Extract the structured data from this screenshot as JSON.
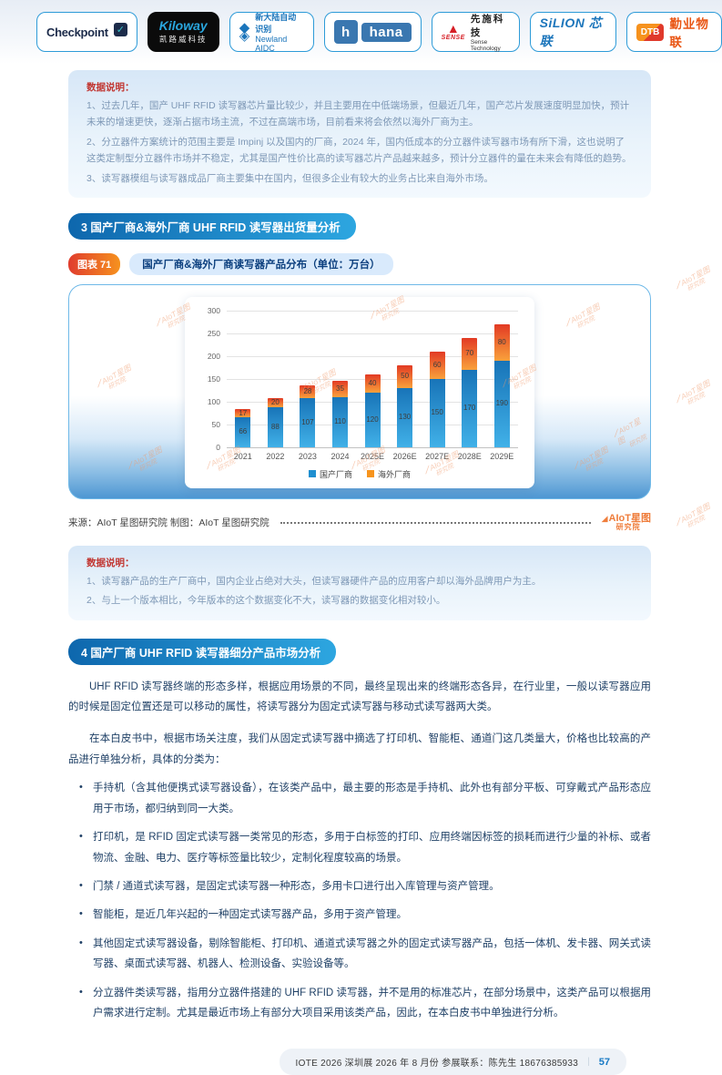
{
  "logos": [
    {
      "text": "Checkpoint"
    },
    {
      "line1": "Kiloway",
      "line2": "凯路威科技"
    },
    {
      "line1": "新大陆自动识别",
      "line2": "Newland AIDC"
    },
    {
      "text": "hana",
      "icon": "h"
    },
    {
      "brand": "SENSE",
      "cn": "先施科技",
      "en": "Sense Technology"
    },
    {
      "text": "SiLION 芯联"
    },
    {
      "badge": "DTB",
      "text": "勤业物联"
    }
  ],
  "note_box_1": {
    "title": "数据说明：",
    "items": [
      "1、过去几年，国产 UHF RFID 读写器芯片量比较少，并且主要用在中低端场景，但最近几年，国产芯片发展速度明显加快，预计未来的增速更快，逐渐占据市场主流，不过在高端市场，目前看来将会依然以海外厂商为主。",
      "2、分立器件方案统计的范围主要是 Impinj 以及国内的厂商，2024 年，国内低成本的分立器件读写器市场有所下滑，这也说明了这类定制型分立器件市场并不稳定，尤其是国产性价比高的读写器芯片产品越来越多，预计分立器件的量在未来会有降低的趋势。",
      "3、读写器模组与读写器成品厂商主要集中在国内，但很多企业有较大的业务占比来自海外市场。"
    ]
  },
  "section_3": {
    "label": "3  国产厂商&海外厂商 UHF RFID 读写器出货量分析"
  },
  "figure": {
    "badge": "图表 71",
    "caption": "国产厂商&海外厂商读写器产品分布（单位：万台）"
  },
  "chart_data": {
    "type": "bar",
    "stacked": true,
    "categories": [
      "2021",
      "2022",
      "2023",
      "2024",
      "2025E",
      "2026E",
      "2027E",
      "2028E",
      "2029E"
    ],
    "series": [
      {
        "name": "国产厂商",
        "color": "#1f8fd0",
        "values": [
          66,
          88,
          107,
          110,
          120,
          130,
          150,
          170,
          190
        ]
      },
      {
        "name": "海外厂商",
        "color": "#f7941d",
        "values": [
          17,
          20,
          28,
          35,
          40,
          50,
          60,
          70,
          80
        ]
      }
    ],
    "title": "国产厂商&海外厂商读写器产品分布（单位：万台）",
    "xlabel": "",
    "ylabel": "",
    "ylim": [
      0,
      300
    ],
    "ytick_step": 50,
    "grid": true,
    "legend_position": "bottom"
  },
  "watermark": {
    "line1": "AIoT星图",
    "line2": "研究院"
  },
  "source_row": {
    "text": "来源：AIoT 星图研究院   制图：AIoT 星图研究院",
    "logo_line1": "AIoT星图",
    "logo_line2": "研究院"
  },
  "note_box_2": {
    "title": "数据说明：",
    "items": [
      "1、读写器产品的生产厂商中，国内企业占绝对大头，但读写器硬件产品的应用客户却以海外品牌用户为主。",
      "2、与上一个版本相比，今年版本的这个数据变化不大，读写器的数据变化相对较小。"
    ]
  },
  "section_4": {
    "label": "4 国产厂商 UHF RFID 读写器细分产品市场分析"
  },
  "paragraphs": [
    "UHF RFID 读写器终端的形态多样，根据应用场景的不同，最终呈现出来的终端形态各异，在行业里，一般以读写器应用的时候是固定位置还是可以移动的属性，将读写器分为固定式读写器与移动式读写器两大类。",
    "在本白皮书中，根据市场关注度，我们从固定式读写器中摘选了打印机、智能柜、通道门这几类量大，价格也比较高的产品进行单独分析，具体的分类为："
  ],
  "bullets": [
    "手持机（含其他便携式读写器设备），在该类产品中，最主要的形态是手持机、此外也有部分平板、可穿戴式产品形态应用于市场，都归纳到同一大类。",
    "打印机，是 RFID 固定式读写器一类常见的形态，多用于白标签的打印、应用终端因标签的损耗而进行少量的补标、或者物流、金融、电力、医疗等标签量比较少，定制化程度较高的场景。",
    "门禁 / 通道式读写器，是固定式读写器一种形态，多用卡口进行出入库管理与资产管理。",
    "智能柜，是近几年兴起的一种固定式读写器产品，多用于资产管理。",
    "其他固定式读写器设备，剔除智能柜、打印机、通道式读写器之外的固定式读写器产品，包括一体机、发卡器、网关式读写器、桌面式读写器、机器人、检测设备、实验设备等。",
    "分立器件类读写器，指用分立器件搭建的 UHF RFID 读写器，并不是用的标准芯片，在部分场景中，这类产品可以根据用户需求进行定制。尤其是最近市场上有部分大项目采用该类产品，因此，在本白皮书中单独进行分析。"
  ],
  "footer": {
    "text": "IOTE 2026 深圳展 2026 年 8 月份  参展联系：陈先生 18676385933",
    "page": "57"
  }
}
